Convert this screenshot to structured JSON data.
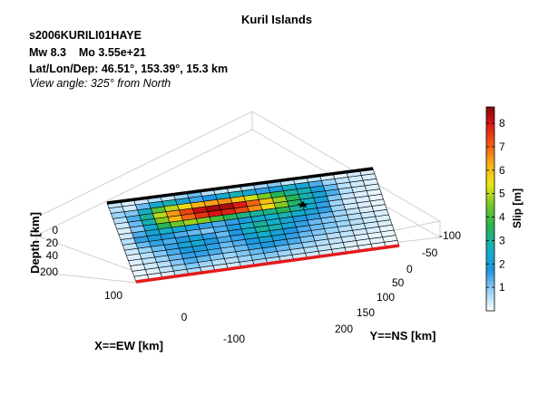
{
  "chart_data": {
    "type": "heatmap",
    "title": "Kuril Islands",
    "event_id": "s2006KURILI01HAYE",
    "magnitude_line": "Mw 8.3    Mo 3.55e+21",
    "location_line": "Lat/Lon/Dep: 46.51°, 153.39°, 15.3 km",
    "view_line": "View angle: 325° from North",
    "xlabel": "X==EW [km]",
    "ylabel": "Y==NS [km]",
    "zlabel": "Depth [km]",
    "colorbar_label": "Slip [m]",
    "x_ticks": [
      "100",
      "0",
      "-100"
    ],
    "y_ticks": [
      "-100",
      "-50",
      "0",
      "50",
      "100",
      "150",
      "200"
    ],
    "z_ticks": [
      "0",
      "20",
      "40",
      "200"
    ],
    "colorbar_ticks": [
      "1",
      "2",
      "3",
      "4",
      "5",
      "6",
      "7",
      "8"
    ],
    "colorbar_range": [
      0,
      8.7
    ],
    "grid_strike_cells": 20,
    "grid_dip_cells": 15,
    "slip_m": [
      [
        0.5,
        0.3,
        0.4,
        0.6,
        0.5,
        0.8,
        1.2,
        0.6,
        0.5,
        0.4,
        0.6,
        0.8,
        1.0,
        0.5,
        0.4,
        0.5,
        0.3,
        0.2,
        0.4,
        0.3
      ],
      [
        0.6,
        0.4,
        1.2,
        2.5,
        2.8,
        2.2,
        1.5,
        1.8,
        2.4,
        2.8,
        2.2,
        1.6,
        2.0,
        2.6,
        2.2,
        1.4,
        0.8,
        0.5,
        0.4,
        0.3
      ],
      [
        0.8,
        1.0,
        2.6,
        4.2,
        5.0,
        5.6,
        6.2,
        6.4,
        6.6,
        6.0,
        5.2,
        4.5,
        3.6,
        3.0,
        2.8,
        2.0,
        1.2,
        0.6,
        0.4,
        0.3
      ],
      [
        0.6,
        1.4,
        3.0,
        5.0,
        6.5,
        7.4,
        8.2,
        8.5,
        8.4,
        7.9,
        7.0,
        6.0,
        4.8,
        3.6,
        2.8,
        2.2,
        1.4,
        0.6,
        0.4,
        0.3
      ],
      [
        0.4,
        1.2,
        2.8,
        4.6,
        6.2,
        7.0,
        7.6,
        8.0,
        7.8,
        7.4,
        6.6,
        5.6,
        4.6,
        3.4,
        2.6,
        2.0,
        1.0,
        0.5,
        0.3,
        0.2
      ],
      [
        0.3,
        1.0,
        2.4,
        3.6,
        4.4,
        4.8,
        4.6,
        4.0,
        3.6,
        3.2,
        3.0,
        3.2,
        3.6,
        3.0,
        2.4,
        1.6,
        0.8,
        0.4,
        0.3,
        0.2
      ],
      [
        0.4,
        1.4,
        2.2,
        2.6,
        2.4,
        2.0,
        1.6,
        1.4,
        1.6,
        2.0,
        2.4,
        2.6,
        2.8,
        2.4,
        2.2,
        1.6,
        0.8,
        0.4,
        0.3,
        0.2
      ],
      [
        0.6,
        1.6,
        2.0,
        1.8,
        1.4,
        1.2,
        1.0,
        1.4,
        2.0,
        2.6,
        3.0,
        2.6,
        2.2,
        1.8,
        1.6,
        1.2,
        0.8,
        0.5,
        0.3,
        0.2
      ],
      [
        0.5,
        1.2,
        1.6,
        1.4,
        1.8,
        2.2,
        1.6,
        1.2,
        1.8,
        2.6,
        3.0,
        2.8,
        2.2,
        1.6,
        1.2,
        1.0,
        0.8,
        0.6,
        0.4,
        0.3
      ],
      [
        0.4,
        0.8,
        1.2,
        1.6,
        2.2,
        2.4,
        1.8,
        1.4,
        1.6,
        2.2,
        2.6,
        2.2,
        1.8,
        1.4,
        1.2,
        1.0,
        0.8,
        0.6,
        0.4,
        0.3
      ],
      [
        0.3,
        0.6,
        1.0,
        1.4,
        1.8,
        2.0,
        1.6,
        1.2,
        1.4,
        1.8,
        2.2,
        2.0,
        1.6,
        1.2,
        1.0,
        0.8,
        0.6,
        0.5,
        0.4,
        0.3
      ],
      [
        0.3,
        0.5,
        0.8,
        1.2,
        1.6,
        1.6,
        1.4,
        1.0,
        1.2,
        1.6,
        1.8,
        1.6,
        1.4,
        1.0,
        0.8,
        0.6,
        0.5,
        0.4,
        0.3,
        0.2
      ],
      [
        0.2,
        0.4,
        0.6,
        1.0,
        1.4,
        1.2,
        1.0,
        0.8,
        1.0,
        1.2,
        1.4,
        1.2,
        1.0,
        0.8,
        0.6,
        0.5,
        0.4,
        0.3,
        0.2,
        0.2
      ],
      [
        0.2,
        0.3,
        0.5,
        0.8,
        1.0,
        0.8,
        0.6,
        0.6,
        0.8,
        1.0,
        1.0,
        0.8,
        0.6,
        0.6,
        0.5,
        0.4,
        0.3,
        0.2,
        0.2,
        0.1
      ],
      [
        0.1,
        0.2,
        0.3,
        0.5,
        0.6,
        0.5,
        0.4,
        0.4,
        0.5,
        0.6,
        0.6,
        0.5,
        0.4,
        0.4,
        0.3,
        0.3,
        0.2,
        0.2,
        0.1,
        0.1
      ]
    ],
    "grid": true,
    "top_edge_color": "#000000",
    "bottom_edge_color": "#e41a1a"
  }
}
